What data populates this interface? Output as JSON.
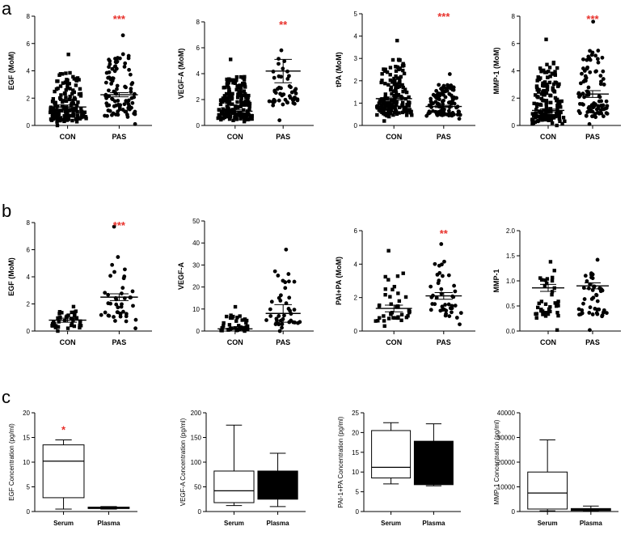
{
  "panel_labels": [
    "a",
    "b",
    "c"
  ],
  "colors": {
    "significance": "#e8322c",
    "axis": "#000000",
    "box_fill_serum": "#ffffff",
    "box_fill_plasma": "#000000"
  },
  "chart_data": [
    {
      "id": "a1",
      "panel": "a",
      "type": "scatter",
      "ylabel": "EGF (MoM)",
      "categories": [
        "CON",
        "PAS"
      ],
      "ylim": [
        0,
        8
      ],
      "yticks": [
        0,
        2,
        4,
        6,
        8
      ],
      "marker": [
        "square",
        "circle"
      ],
      "significance": "***",
      "series": [
        {
          "name": "CON",
          "count": 160,
          "min": 0.0,
          "max": 5.2,
          "mean": 1.35,
          "sem": 0.15
        },
        {
          "name": "PAS",
          "count": 95,
          "min": 0.1,
          "max": 6.6,
          "mean": 2.25,
          "sem": 0.15
        }
      ]
    },
    {
      "id": "a2",
      "panel": "a",
      "type": "scatter",
      "ylabel": "VEGF-A (MoM)",
      "categories": [
        "CON",
        "PAS"
      ],
      "ylim": [
        0,
        8
      ],
      "yticks": [
        0,
        2,
        4,
        6,
        8
      ],
      "marker": [
        "square",
        "circle"
      ],
      "significance": "**",
      "series": [
        {
          "name": "CON",
          "count": 180,
          "min": 0.3,
          "max": 5.1,
          "mean": 1.1,
          "sem": 0.1
        },
        {
          "name": "PAS",
          "count": 50,
          "min": 0.4,
          "max": 5.8,
          "mean": 4.2,
          "sem": 0.9
        }
      ]
    },
    {
      "id": "a3",
      "panel": "a",
      "type": "scatter",
      "ylabel": "tPA (MoM)",
      "categories": [
        "CON",
        "PAS"
      ],
      "ylim": [
        0,
        5
      ],
      "yticks": [
        0,
        1,
        2,
        3,
        4,
        5
      ],
      "marker": [
        "square",
        "circle"
      ],
      "significance": "***",
      "series": [
        {
          "name": "CON",
          "count": 170,
          "min": 0.2,
          "max": 3.8,
          "mean": 1.2,
          "sem": 0.07
        },
        {
          "name": "PAS",
          "count": 110,
          "min": 0.3,
          "max": 2.3,
          "mean": 0.85,
          "sem": 0.05
        }
      ]
    },
    {
      "id": "a4",
      "panel": "a",
      "type": "scatter",
      "ylabel": "MMP-1 (MoM)",
      "categories": [
        "CON",
        "PAS"
      ],
      "ylim": [
        0,
        8
      ],
      "yticks": [
        0,
        2,
        4,
        6,
        8
      ],
      "marker": [
        "square",
        "circle"
      ],
      "significance": "***",
      "series": [
        {
          "name": "CON",
          "count": 170,
          "min": 0.0,
          "max": 6.3,
          "mean": 1.1,
          "sem": 0.1
        },
        {
          "name": "PAS",
          "count": 95,
          "min": 0.1,
          "max": 7.6,
          "mean": 2.3,
          "sem": 0.25
        }
      ]
    },
    {
      "id": "b1",
      "panel": "b",
      "type": "scatter",
      "ylabel": "EGF (MoM)",
      "categories": [
        "CON",
        "PAS"
      ],
      "ylim": [
        0,
        8
      ],
      "yticks": [
        0,
        2,
        4,
        6,
        8
      ],
      "marker": [
        "square",
        "circle"
      ],
      "significance": "***",
      "series": [
        {
          "name": "CON",
          "count": 40,
          "min": 0.0,
          "max": 1.8,
          "mean": 0.8,
          "sem": 0.15
        },
        {
          "name": "PAS",
          "count": 42,
          "min": 0.2,
          "max": 7.7,
          "mean": 2.5,
          "sem": 0.25
        }
      ]
    },
    {
      "id": "b2",
      "panel": "b",
      "type": "scatter",
      "ylabel": "VEGF-A",
      "categories": [
        "CON",
        "PAS"
      ],
      "ylim": [
        0,
        50
      ],
      "yticks": [
        0,
        10,
        20,
        30,
        40,
        50
      ],
      "marker": [
        "square",
        "circle"
      ],
      "significance": "",
      "series": [
        {
          "name": "CON",
          "count": 40,
          "min": 0.0,
          "max": 11,
          "mean": 1.0,
          "sem": 0.3
        },
        {
          "name": "PAS",
          "count": 40,
          "min": 0.0,
          "max": 37,
          "mean": 8.0,
          "sem": 4.0
        }
      ]
    },
    {
      "id": "b3",
      "panel": "b",
      "type": "scatter",
      "ylabel": "PAI+PA (MoM)",
      "categories": [
        "CON",
        "PAS"
      ],
      "ylim": [
        0,
        6
      ],
      "yticks": [
        0,
        2,
        4,
        6
      ],
      "marker": [
        "square",
        "circle"
      ],
      "significance": "**",
      "series": [
        {
          "name": "CON",
          "count": 40,
          "min": 0.3,
          "max": 4.8,
          "mean": 1.35,
          "sem": 0.2
        },
        {
          "name": "PAS",
          "count": 42,
          "min": 0.4,
          "max": 5.2,
          "mean": 2.1,
          "sem": 0.2
        }
      ]
    },
    {
      "id": "b4",
      "panel": "b",
      "type": "scatter",
      "ylabel": "MMP-1",
      "categories": [
        "CON",
        "PAS"
      ],
      "ylim": [
        0,
        2
      ],
      "yticks": [
        0.0,
        0.5,
        1.0,
        1.5,
        2.0
      ],
      "marker": [
        "square",
        "circle"
      ],
      "significance": "",
      "series": [
        {
          "name": "CON",
          "count": 40,
          "min": 0.02,
          "max": 1.38,
          "mean": 0.86,
          "sem": 0.07
        },
        {
          "name": "PAS",
          "count": 45,
          "min": 0.02,
          "max": 1.42,
          "mean": 0.9,
          "sem": 0.06
        }
      ]
    },
    {
      "id": "c1",
      "panel": "c",
      "type": "box",
      "ylabel": "EGF Concentration (pg/ml)",
      "categories": [
        "Serum",
        "Plasma"
      ],
      "ylim": [
        0,
        20
      ],
      "yticks": [
        0,
        5,
        10,
        15,
        20
      ],
      "significance": "*",
      "boxes": [
        {
          "name": "Serum",
          "min": 0.5,
          "q1": 2.8,
          "median": 10.2,
          "q3": 13.5,
          "max": 14.5
        },
        {
          "name": "Plasma",
          "min": 0.5,
          "q1": 0.6,
          "median": 0.8,
          "q3": 0.9,
          "max": 1.0
        }
      ]
    },
    {
      "id": "c2",
      "panel": "c",
      "type": "box",
      "ylabel": "VEGF-A Concentration (pg/ml)",
      "categories": [
        "Serum",
        "Plasma"
      ],
      "ylim": [
        0,
        200
      ],
      "yticks": [
        0,
        50,
        100,
        150,
        200
      ],
      "significance": "",
      "boxes": [
        {
          "name": "Serum",
          "min": 12,
          "q1": 18,
          "median": 42,
          "q3": 82,
          "max": 175
        },
        {
          "name": "Plasma",
          "min": 10,
          "q1": 25,
          "median": 60,
          "q3": 82,
          "max": 118
        }
      ]
    },
    {
      "id": "c3",
      "panel": "c",
      "type": "box",
      "ylabel": "PAI-1+PA Concentration (pg/ml)",
      "categories": [
        "Serum",
        "Plasma"
      ],
      "ylim": [
        0,
        25
      ],
      "yticks": [
        0,
        5,
        10,
        15,
        20,
        25
      ],
      "significance": "",
      "boxes": [
        {
          "name": "Serum",
          "min": 7,
          "q1": 8.5,
          "median": 11.2,
          "q3": 20.5,
          "max": 22.5
        },
        {
          "name": "Plasma",
          "min": 6.5,
          "q1": 6.8,
          "median": 12,
          "q3": 17.8,
          "max": 22.2
        }
      ]
    },
    {
      "id": "c4",
      "panel": "c",
      "type": "box",
      "ylabel": "MMP-1 Concentration (pg/ml)",
      "categories": [
        "Serum",
        "Plasma"
      ],
      "ylim": [
        0,
        40000
      ],
      "yticks": [
        0,
        10000,
        20000,
        30000,
        40000
      ],
      "significance": "",
      "boxes": [
        {
          "name": "Serum",
          "min": 300,
          "q1": 1000,
          "median": 7500,
          "q3": 16000,
          "max": 29000
        },
        {
          "name": "Plasma",
          "min": 200,
          "q1": 400,
          "median": 700,
          "q3": 1200,
          "max": 2200
        }
      ]
    }
  ]
}
